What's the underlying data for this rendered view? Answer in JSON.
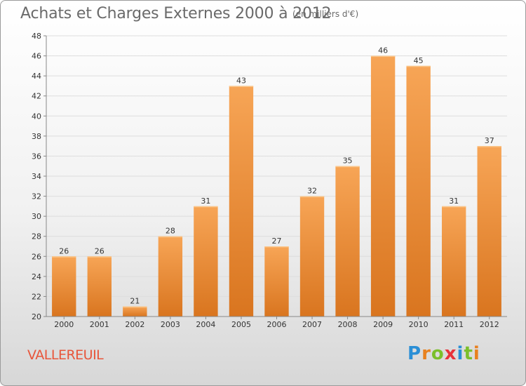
{
  "title": "Achats et Charges Externes 2000 à 2012",
  "subtitle": "(en milliers d'€)",
  "place": "VALLEREUIL",
  "logo": {
    "letters": [
      "P",
      "r",
      "o",
      "x",
      "i",
      "t",
      "i"
    ],
    "colors": [
      "#2a8fd6",
      "#e8811f",
      "#7bbf2b",
      "#e8323a",
      "#2a8fd6",
      "#7bbf2b",
      "#e8811f"
    ]
  },
  "colors": {
    "bar_light": "#f7a556",
    "bar_dark": "#d9751f",
    "grid": "#dddddd",
    "axis": "#888888"
  },
  "chart_data": {
    "type": "bar",
    "title": "Achats et Charges Externes 2000 à 2012",
    "subtitle": "(en milliers d'€)",
    "categories": [
      "2000",
      "2001",
      "2002",
      "2003",
      "2004",
      "2005",
      "2006",
      "2007",
      "2008",
      "2009",
      "2010",
      "2011",
      "2012"
    ],
    "values": [
      26,
      26,
      21,
      28,
      31,
      43,
      27,
      32,
      35,
      46,
      45,
      31,
      37
    ],
    "ylim": [
      20,
      48
    ],
    "yticks": [
      20,
      22,
      24,
      26,
      28,
      30,
      32,
      34,
      36,
      38,
      40,
      42,
      44,
      46,
      48
    ],
    "grid": true
  }
}
